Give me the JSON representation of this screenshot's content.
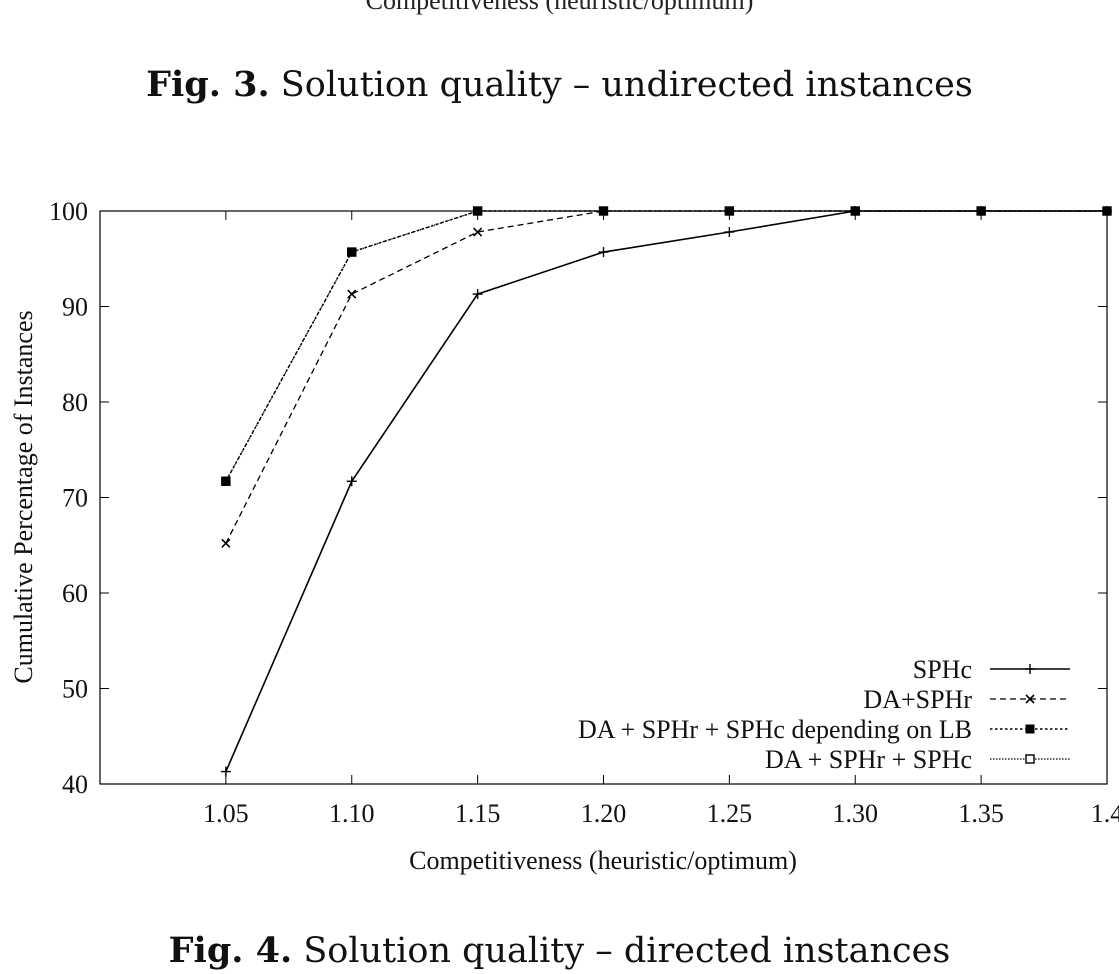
{
  "top_partial_label": "Competitiveness (heuristic/optimum)",
  "captions": {
    "top": {
      "num": "Fig. 3.",
      "text": " Solution quality – undirected instances"
    },
    "bottom": {
      "num": "Fig. 4.",
      "text": " Solution quality – directed instances"
    }
  },
  "chart_data": {
    "type": "line",
    "title": "",
    "xlabel": "Competitiveness (heuristic/optimum)",
    "ylabel": "Cumulative Percentage of Instances",
    "x": [
      1.05,
      1.1,
      1.15,
      1.2,
      1.25,
      1.3,
      1.35,
      1.4
    ],
    "x_tick_labels": [
      "1.05",
      "1.10",
      "1.15",
      "1.20",
      "1.25",
      "1.30",
      "1.35",
      "1.4"
    ],
    "y_ticks": [
      40,
      50,
      60,
      70,
      80,
      90,
      100
    ],
    "xlim": [
      1.0,
      1.4
    ],
    "ylim": [
      40,
      100
    ],
    "legend_position": "bottom-right",
    "series": [
      {
        "name": "SPHc",
        "marker": "plus",
        "dash": "solid",
        "values": [
          41.3,
          71.7,
          91.3,
          95.7,
          97.8,
          100,
          100,
          100
        ]
      },
      {
        "name": "DA+SPHr",
        "marker": "cross",
        "dash": "dashed",
        "values": [
          65.2,
          91.3,
          97.8,
          100,
          100,
          100,
          100,
          100
        ]
      },
      {
        "name": "DA + SPHr + SPHc depending on LB",
        "marker": "filled-square",
        "dash": "dotted",
        "values": [
          71.7,
          95.7,
          100,
          100,
          100,
          100,
          100,
          100
        ]
      },
      {
        "name": "DA + SPHr + SPHc",
        "marker": "open-square",
        "dash": "fine-dotted",
        "values": [
          71.7,
          95.7,
          100,
          100,
          100,
          100,
          100,
          100
        ]
      }
    ]
  }
}
